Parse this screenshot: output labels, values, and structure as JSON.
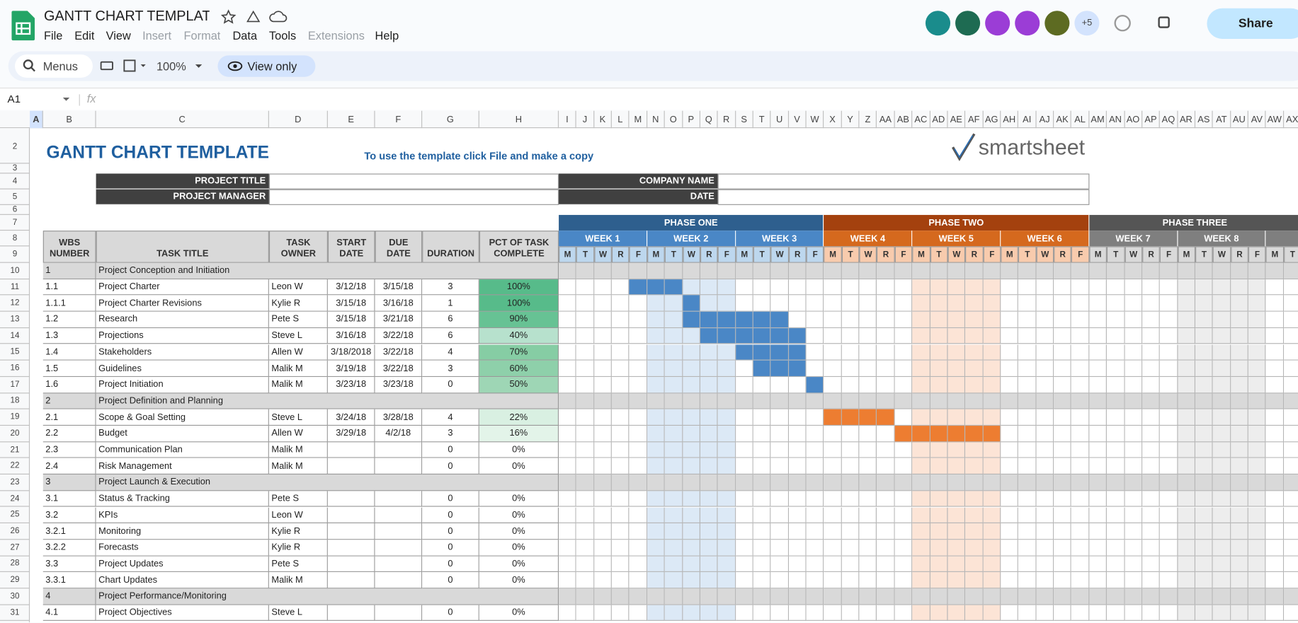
{
  "header": {
    "doc_title": "GANTT CHART TEMPLATE",
    "menus": [
      {
        "label": "File"
      },
      {
        "label": "Edit"
      },
      {
        "label": "View"
      },
      {
        "label": "Insert",
        "disabled": true
      },
      {
        "label": "Format",
        "disabled": true
      },
      {
        "label": "Data"
      },
      {
        "label": "Tools"
      },
      {
        "label": "Extensions",
        "disabled": true
      },
      {
        "label": "Help"
      }
    ],
    "more_avatars": "+5",
    "share": "Share"
  },
  "toolbar": {
    "search": "Menus",
    "zoom": "100%",
    "mode": "View only"
  },
  "formula_bar": {
    "cell": "A1",
    "fx": "fx"
  },
  "columns": [
    "A",
    "B",
    "C",
    "D",
    "E",
    "F",
    "G",
    "H",
    "I",
    "J",
    "K",
    "L",
    "M",
    "N",
    "O",
    "P",
    "Q",
    "R",
    "S",
    "T",
    "U",
    "V",
    "W",
    "X",
    "Y",
    "Z",
    "AA",
    "AB",
    "AC",
    "AD",
    "AE",
    "AF",
    "AG",
    "AH",
    "AI",
    "AJ",
    "AK",
    "AL",
    "AM",
    "AN",
    "AO",
    "AP",
    "AQ",
    "AR",
    "AS",
    "AT",
    "AU",
    "AV",
    "AW",
    "AX"
  ],
  "row_numbers": [
    2,
    3,
    4,
    5,
    6,
    7,
    8,
    9,
    10,
    11,
    12,
    13,
    14,
    15,
    16,
    17,
    18,
    19,
    20,
    21,
    22,
    23,
    24,
    25,
    26,
    27,
    28,
    29,
    30,
    31
  ],
  "sheet": {
    "title": "GANTT CHART TEMPLATE",
    "instruction": "To use the template click File and make a copy",
    "logo": "smartsheet",
    "fields": [
      "PROJECT TITLE",
      "PROJECT MANAGER",
      "COMPANY NAME",
      "DATE"
    ],
    "table_headers": [
      "WBS NUMBER",
      "TASK TITLE",
      "TASK OWNER",
      "START DATE",
      "DUE DATE",
      "DURATION",
      "PCT OF TASK COMPLETE"
    ],
    "days": [
      "M",
      "T",
      "W",
      "R",
      "F"
    ],
    "phases": [
      {
        "name": "PHASE ONE",
        "color": "#2e5f8e",
        "week_color": "#4a87c6",
        "day_color": "#bdd7ee",
        "shade": "#dce9f6",
        "weeks": [
          "WEEK 1",
          "WEEK 2",
          "WEEK 3"
        ]
      },
      {
        "name": "PHASE TWO",
        "color": "#a4410e",
        "week_color": "#d5691e",
        "day_color": "#f8cbad",
        "shade": "#fce4d6",
        "weeks": [
          "WEEK 4",
          "WEEK 5",
          "WEEK 6"
        ]
      },
      {
        "name": "PHASE THREE",
        "color": "#555555",
        "week_color": "#7f7f7f",
        "day_color": "#d9d9d9",
        "shade": "#ededed",
        "weeks": [
          "WEEK 7",
          "WEEK 8"
        ]
      }
    ],
    "rows": [
      [
        "1",
        "Project Conception and Initiation"
      ],
      [
        "1.1",
        "Project Charter",
        "Leon W",
        "3/12/18",
        "3/15/18",
        "3",
        "100%"
      ],
      [
        "1.1.1",
        "Project Charter Revisions",
        "Kylie R",
        "3/15/18",
        "3/16/18",
        "1",
        "100%"
      ],
      [
        "1.2",
        "Research",
        "Pete S",
        "3/15/18",
        "3/21/18",
        "6",
        "90%"
      ],
      [
        "1.3",
        "Projections",
        "Steve L",
        "3/16/18",
        "3/22/18",
        "6",
        "40%"
      ],
      [
        "1.4",
        "Stakeholders",
        "Allen W",
        "3/18/2018",
        "3/22/18",
        "4",
        "70%"
      ],
      [
        "1.5",
        "Guidelines",
        "Malik M",
        "3/19/18",
        "3/22/18",
        "3",
        "60%"
      ],
      [
        "1.6",
        "Project Initiation",
        "Malik M",
        "3/23/18",
        "3/23/18",
        "0",
        "50%"
      ],
      [
        "2",
        "Project Definition and Planning"
      ],
      [
        "2.1",
        "Scope & Goal Setting",
        "Steve L",
        "3/24/18",
        "3/28/18",
        "4",
        "22%"
      ],
      [
        "2.2",
        "Budget",
        "Allen W",
        "3/29/18",
        "4/2/18",
        "3",
        "16%"
      ],
      [
        "2.3",
        "Communication Plan",
        "Malik M",
        null,
        null,
        "0",
        "0%"
      ],
      [
        "2.4",
        "Risk Management",
        "Malik M",
        null,
        null,
        "0",
        "0%"
      ],
      [
        "3",
        "Project Launch & Execution"
      ],
      [
        "3.1",
        "Status & Tracking",
        "Pete S",
        null,
        null,
        "0",
        "0%"
      ],
      [
        "3.2",
        "KPIs",
        "Leon W",
        null,
        null,
        "0",
        "0%"
      ],
      [
        "3.2.1",
        "Monitoring",
        "Kylie R",
        null,
        null,
        "0",
        "0%"
      ],
      [
        "3.2.2",
        "Forecasts",
        "Kylie R",
        null,
        null,
        "0",
        "0%"
      ],
      [
        "3.3",
        "Project Updates",
        "Pete S",
        null,
        null,
        "0",
        "0%"
      ],
      [
        "3.3.1",
        "Chart Updates",
        "Malik M",
        null,
        null,
        "0",
        "0%"
      ],
      [
        "4",
        "Project Performance/Monitoring"
      ],
      [
        "4.1",
        "Project Objectives",
        "Steve L",
        null,
        null,
        "0",
        "0%"
      ]
    ]
  }
}
